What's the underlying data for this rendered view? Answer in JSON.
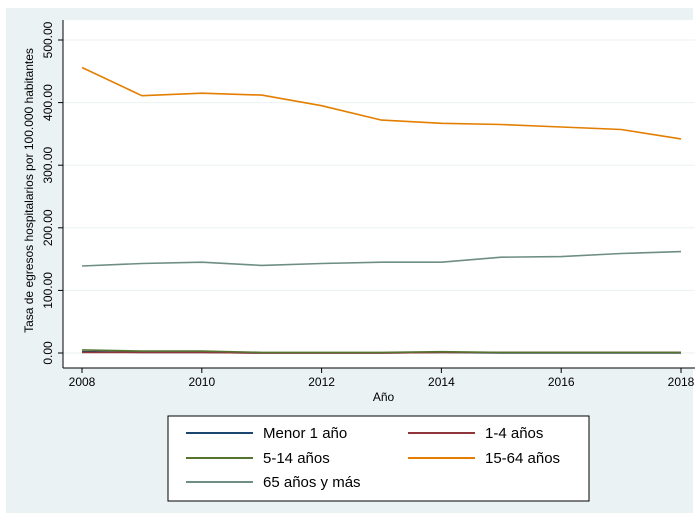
{
  "chart_data": {
    "type": "line",
    "xlabel": "Año",
    "ylabel": "Tasa de egresos hospitalarios por 100.000 habitantes",
    "xlim": [
      2008,
      2018
    ],
    "ylim": [
      0,
      500
    ],
    "xticks": [
      2008,
      2010,
      2012,
      2014,
      2016,
      2018
    ],
    "xtick_labels": [
      "2008",
      "2010",
      "2012",
      "2014",
      "2016",
      "2018"
    ],
    "yticks": [
      0,
      100,
      200,
      300,
      400,
      500
    ],
    "ytick_labels": [
      "0.00",
      "100.00",
      "200.00",
      "300.00",
      "400.00",
      "500.00"
    ],
    "grid": "horizontal",
    "legend_position": "bottom",
    "x": [
      2008,
      2009,
      2010,
      2011,
      2012,
      2013,
      2014,
      2015,
      2016,
      2017,
      2018
    ],
    "series": [
      {
        "name": "Menor 1 año",
        "color": "#1a476f",
        "values": [
          2,
          1,
          1,
          0,
          0,
          0,
          1,
          0,
          0,
          0,
          0
        ]
      },
      {
        "name": "1-4 años",
        "color": "#90353b",
        "values": [
          1,
          1,
          1,
          0,
          0,
          0,
          1,
          1,
          1,
          1,
          1
        ]
      },
      {
        "name": "5-14 años",
        "color": "#55752f",
        "values": [
          5,
          3,
          3,
          1,
          1,
          1,
          2,
          1,
          1,
          1,
          1
        ]
      },
      {
        "name": "15-64 años",
        "color": "#e37e00",
        "values": [
          456,
          411,
          415,
          412,
          395,
          372,
          367,
          365,
          361,
          357,
          342
        ]
      },
      {
        "name": "65 años y más",
        "color": "#6e8e84",
        "values": [
          139,
          143,
          145,
          140,
          143,
          145,
          145,
          153,
          154,
          159,
          162
        ]
      }
    ]
  }
}
